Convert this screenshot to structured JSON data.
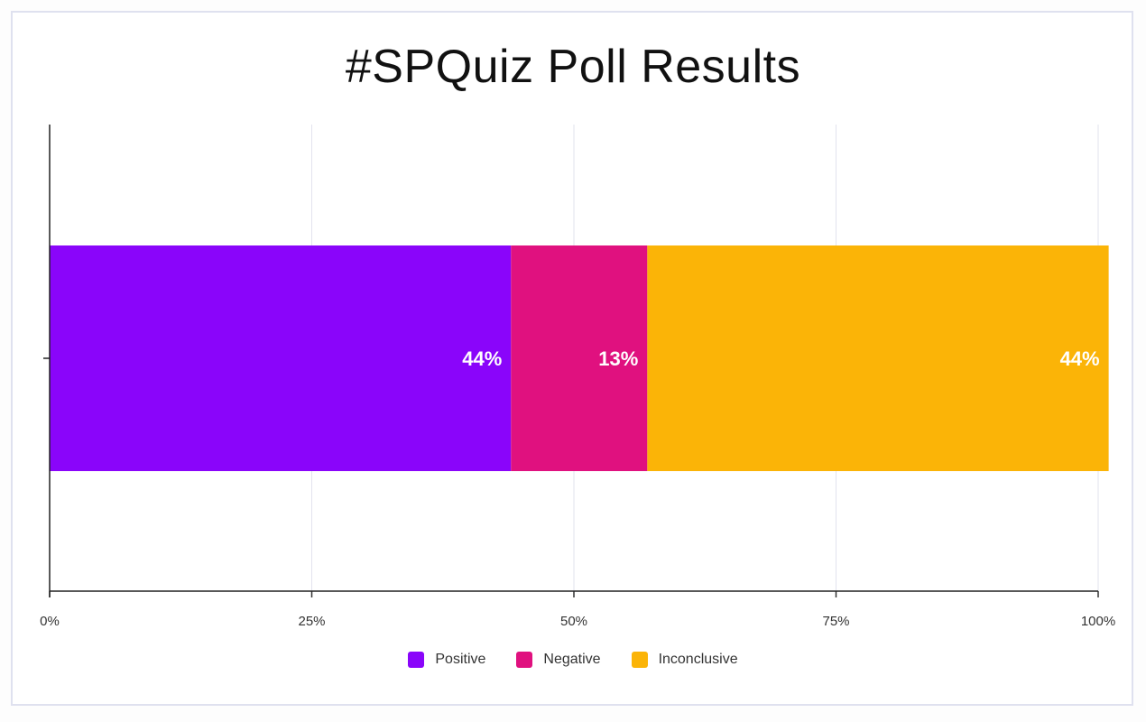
{
  "chart_data": {
    "type": "bar",
    "orientation": "horizontal",
    "stacked": true,
    "title": "#SPQuiz Poll Results",
    "categories": [
      ""
    ],
    "series": [
      {
        "name": "Positive",
        "values": [
          44
        ],
        "label": "44%",
        "color": "#8a05fa"
      },
      {
        "name": "Negative",
        "values": [
          13
        ],
        "label": "13%",
        "color": "#e0117f"
      },
      {
        "name": "Inconclusive",
        "values": [
          44
        ],
        "label": "44%",
        "color": "#fbb407"
      }
    ],
    "xlim": [
      0,
      100
    ],
    "x_ticks": [
      "0%",
      "25%",
      "50%",
      "75%",
      "100%"
    ],
    "grid": true,
    "legend_position": "bottom"
  }
}
